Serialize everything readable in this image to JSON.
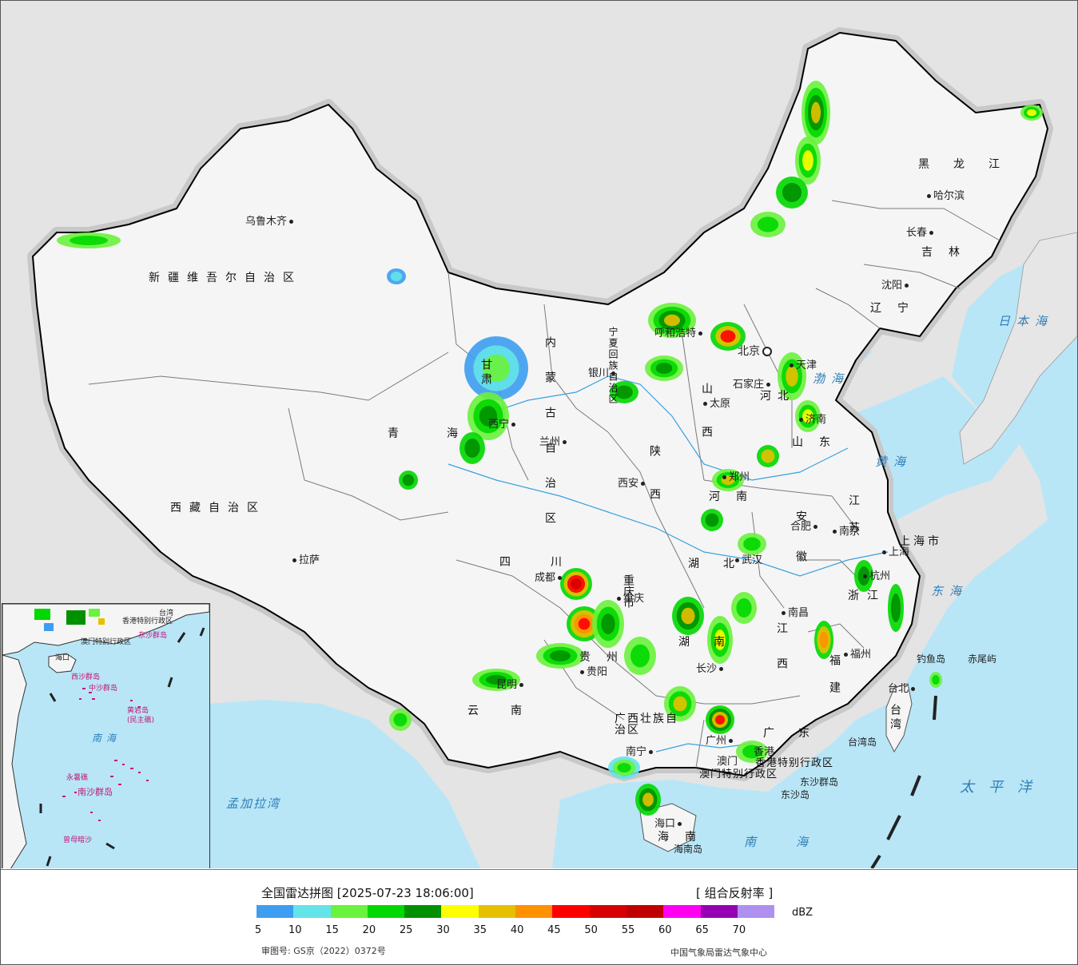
{
  "map": {
    "land_color": "#f6f6f6",
    "sea_color": "#b8e6f7",
    "background_color": "#e4e4e4",
    "cities": [
      {
        "name": "乌鲁木齐"
      },
      {
        "name": "哈尔滨"
      },
      {
        "name": "长春"
      },
      {
        "name": "沈阳"
      },
      {
        "name": "呼和浩特"
      },
      {
        "name": "北京"
      },
      {
        "name": "天津"
      },
      {
        "name": "石家庄"
      },
      {
        "name": "太原"
      },
      {
        "name": "银川"
      },
      {
        "name": "西宁"
      },
      {
        "name": "兰州"
      },
      {
        "name": "西安"
      },
      {
        "name": "郑州"
      },
      {
        "name": "济南"
      },
      {
        "name": "合肥"
      },
      {
        "name": "南京"
      },
      {
        "name": "上海"
      },
      {
        "name": "杭州"
      },
      {
        "name": "武汉"
      },
      {
        "name": "南昌"
      },
      {
        "name": "福州"
      },
      {
        "name": "台北"
      },
      {
        "name": "长沙"
      },
      {
        "name": "重庆"
      },
      {
        "name": "成都"
      },
      {
        "name": "贵阳"
      },
      {
        "name": "昆明"
      },
      {
        "name": "南宁"
      },
      {
        "name": "广州"
      },
      {
        "name": "海口"
      },
      {
        "name": "拉萨"
      },
      {
        "name": "香港"
      },
      {
        "name": "澳门"
      }
    ],
    "provinces": [
      {
        "name": "新疆维吾尔自治区"
      },
      {
        "name": "西藏自治区"
      },
      {
        "name": "青海"
      },
      {
        "name": "甘肃"
      },
      {
        "name": "内蒙古自治区"
      },
      {
        "name": "黑龙江"
      },
      {
        "name": "吉林"
      },
      {
        "name": "辽宁"
      },
      {
        "name": "河北"
      },
      {
        "name": "山西"
      },
      {
        "name": "陕西"
      },
      {
        "name": "宁夏回族自治区"
      },
      {
        "name": "山东"
      },
      {
        "name": "河南"
      },
      {
        "name": "江苏"
      },
      {
        "name": "安徽"
      },
      {
        "name": "上海市"
      },
      {
        "name": "浙江"
      },
      {
        "name": "江西"
      },
      {
        "name": "湖北"
      },
      {
        "name": "湖南"
      },
      {
        "name": "四川"
      },
      {
        "name": "重庆市"
      },
      {
        "name": "贵州"
      },
      {
        "name": "云南"
      },
      {
        "name": "广西壮族自治区"
      },
      {
        "name": "广东"
      },
      {
        "name": "福建"
      },
      {
        "name": "海南"
      },
      {
        "name": "台湾"
      },
      {
        "name": "香港特别行政区"
      },
      {
        "name": "澳门特别行政区"
      }
    ],
    "seas": [
      {
        "name": "渤海"
      },
      {
        "name": "黄海"
      },
      {
        "name": "东海"
      },
      {
        "name": "南海"
      },
      {
        "name": "日本海"
      },
      {
        "name": "太平洋"
      },
      {
        "name": "孟加拉湾"
      }
    ],
    "islands": [
      {
        "name": "钓鱼岛"
      },
      {
        "name": "赤尾屿"
      },
      {
        "name": "东沙群岛"
      },
      {
        "name": "东沙岛"
      },
      {
        "name": "海南岛"
      },
      {
        "name": "台湾岛"
      }
    ]
  },
  "inset": {
    "sea_name": "南海",
    "labels": [
      {
        "name": "东沙群岛"
      },
      {
        "name": "西沙群岛"
      },
      {
        "name": "中沙群岛"
      },
      {
        "name": "黄岩岛"
      },
      {
        "name": "(民主礁)"
      },
      {
        "name": "永暑礁"
      },
      {
        "name": "南沙群岛"
      },
      {
        "name": "曾母暗沙"
      },
      {
        "name": "香港特别行政区"
      },
      {
        "name": "澳门特别行政区"
      },
      {
        "name": "海口"
      },
      {
        "name": "台湾"
      }
    ]
  },
  "legend": {
    "title": "全国雷达拼图 [2025-07-23 18:06:00]",
    "product": "[ 组合反射率 ]",
    "unit": "dBZ",
    "approval": "审图号: GS京（2022）0372号",
    "source": "中国气象局雷达气象中心",
    "scale": [
      {
        "value": "5",
        "color": "#3d9df0"
      },
      {
        "value": "10",
        "color": "#62e4e8"
      },
      {
        "value": "15",
        "color": "#6af23c"
      },
      {
        "value": "20",
        "color": "#00d800"
      },
      {
        "value": "25",
        "color": "#009000"
      },
      {
        "value": "30",
        "color": "#ffff00"
      },
      {
        "value": "35",
        "color": "#e6c000"
      },
      {
        "value": "40",
        "color": "#ff9000"
      },
      {
        "value": "45",
        "color": "#ff0000"
      },
      {
        "value": "50",
        "color": "#d60000"
      },
      {
        "value": "55",
        "color": "#c00000"
      },
      {
        "value": "60",
        "color": "#ff00f0"
      },
      {
        "value": "65",
        "color": "#9600b4"
      },
      {
        "value": "70",
        "color": "#ad90f0"
      }
    ]
  }
}
